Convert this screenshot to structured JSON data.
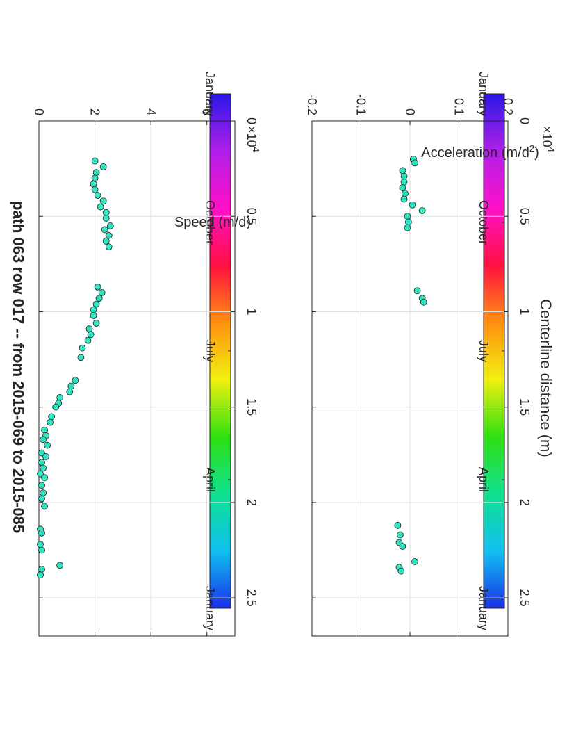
{
  "title": "path 063 row 017  -- from 2015-069 to 2015-085",
  "colors": {
    "marker_fill": "#2fe6c3",
    "marker_edge": "#1f1f1f",
    "grid": "#dedede",
    "axis": "#262626"
  },
  "colorbar": {
    "labels": [
      "January",
      "October",
      "July",
      "April",
      "January"
    ],
    "stops": [
      "#2a18e8",
      "#b020e8",
      "#ff10c8",
      "#ff1040",
      "#ff9010",
      "#f0f010",
      "#30e010",
      "#10e090",
      "#10c0f0",
      "#1a30e8"
    ]
  },
  "chart_data": [
    {
      "type": "scatter",
      "name": "speed",
      "xlabel": "Centerline distance (m)",
      "ylabel": "Speed (m/d)",
      "x_exponent_label": "×10",
      "x_exponent": "4",
      "xlim": [
        0,
        27000
      ],
      "ylim": [
        0,
        7
      ],
      "xticks": [
        0,
        5000,
        10000,
        15000,
        20000,
        25000
      ],
      "xtick_labels": [
        "0",
        "0.5",
        "1",
        "1.5",
        "2",
        "2.5"
      ],
      "yticks": [
        0,
        2,
        4,
        6
      ],
      "ytick_labels": [
        "0",
        "2",
        "4",
        "6"
      ],
      "grid": true,
      "points": [
        {
          "x": 2100,
          "y": 2.0
        },
        {
          "x": 2400,
          "y": 2.3
        },
        {
          "x": 2700,
          "y": 2.05
        },
        {
          "x": 3000,
          "y": 2.0
        },
        {
          "x": 3300,
          "y": 1.95
        },
        {
          "x": 3600,
          "y": 2.0
        },
        {
          "x": 3900,
          "y": 2.1
        },
        {
          "x": 4200,
          "y": 2.3
        },
        {
          "x": 4500,
          "y": 2.2
        },
        {
          "x": 4800,
          "y": 2.4
        },
        {
          "x": 5100,
          "y": 2.4
        },
        {
          "x": 5500,
          "y": 2.55
        },
        {
          "x": 5700,
          "y": 2.35
        },
        {
          "x": 6000,
          "y": 2.5
        },
        {
          "x": 6300,
          "y": 2.4
        },
        {
          "x": 6600,
          "y": 2.5
        },
        {
          "x": 8700,
          "y": 2.1
        },
        {
          "x": 9000,
          "y": 2.25
        },
        {
          "x": 9300,
          "y": 2.15
        },
        {
          "x": 9600,
          "y": 2.05
        },
        {
          "x": 9900,
          "y": 1.95
        },
        {
          "x": 10200,
          "y": 1.95
        },
        {
          "x": 10600,
          "y": 2.05
        },
        {
          "x": 10900,
          "y": 1.8
        },
        {
          "x": 11200,
          "y": 1.85
        },
        {
          "x": 11500,
          "y": 1.75
        },
        {
          "x": 11900,
          "y": 1.55
        },
        {
          "x": 12400,
          "y": 1.5
        },
        {
          "x": 13600,
          "y": 1.3
        },
        {
          "x": 13900,
          "y": 1.15
        },
        {
          "x": 14200,
          "y": 1.1
        },
        {
          "x": 14500,
          "y": 0.75
        },
        {
          "x": 14800,
          "y": 0.7
        },
        {
          "x": 15000,
          "y": 0.6
        },
        {
          "x": 15500,
          "y": 0.45
        },
        {
          "x": 15800,
          "y": 0.4
        },
        {
          "x": 16200,
          "y": 0.2
        },
        {
          "x": 16500,
          "y": 0.25
        },
        {
          "x": 16700,
          "y": 0.15
        },
        {
          "x": 17000,
          "y": 0.3
        },
        {
          "x": 17400,
          "y": 0.1
        },
        {
          "x": 17600,
          "y": 0.25
        },
        {
          "x": 17900,
          "y": 0.1
        },
        {
          "x": 18200,
          "y": 0.15
        },
        {
          "x": 18500,
          "y": 0.05
        },
        {
          "x": 18700,
          "y": 0.2
        },
        {
          "x": 19100,
          "y": 0.1
        },
        {
          "x": 19500,
          "y": 0.15
        },
        {
          "x": 19800,
          "y": 0.1
        },
        {
          "x": 20200,
          "y": 0.2
        },
        {
          "x": 21400,
          "y": 0.05
        },
        {
          "x": 21600,
          "y": 0.1
        },
        {
          "x": 22200,
          "y": 0.05
        },
        {
          "x": 22500,
          "y": 0.1
        },
        {
          "x": 23300,
          "y": 0.75
        },
        {
          "x": 23500,
          "y": 0.1
        },
        {
          "x": 23800,
          "y": 0.05
        }
      ]
    },
    {
      "type": "scatter",
      "name": "acceleration",
      "xlabel": "Centerline distance (m)",
      "ylabel_main": "Acceleration (m/d",
      "ylabel_sup": "2",
      "ylabel_end": ")",
      "x_exponent_label": "×10",
      "x_exponent": "4",
      "xlim": [
        0,
        27000
      ],
      "ylim": [
        -0.2,
        0.2
      ],
      "xticks": [
        0,
        5000,
        10000,
        15000,
        20000,
        25000
      ],
      "xtick_labels": [
        "0",
        "0.5",
        "1",
        "1.5",
        "2",
        "2.5"
      ],
      "yticks": [
        -0.2,
        -0.1,
        0,
        0.1,
        0.2
      ],
      "ytick_labels": [
        "-0.2",
        "-0.1",
        "0",
        "0.1",
        "0.2"
      ],
      "grid": true,
      "points": [
        {
          "x": 2000,
          "y": 0.007
        },
        {
          "x": 2200,
          "y": 0.01
        },
        {
          "x": 2600,
          "y": -0.015
        },
        {
          "x": 2900,
          "y": -0.012
        },
        {
          "x": 3200,
          "y": -0.012
        },
        {
          "x": 3500,
          "y": -0.015
        },
        {
          "x": 3800,
          "y": -0.01
        },
        {
          "x": 4100,
          "y": -0.012
        },
        {
          "x": 4400,
          "y": 0.005
        },
        {
          "x": 4700,
          "y": 0.025
        },
        {
          "x": 5000,
          "y": -0.005
        },
        {
          "x": 5300,
          "y": -0.003
        },
        {
          "x": 5600,
          "y": -0.005
        },
        {
          "x": 8900,
          "y": 0.015
        },
        {
          "x": 9300,
          "y": 0.025
        },
        {
          "x": 9500,
          "y": 0.028
        },
        {
          "x": 21200,
          "y": -0.025
        },
        {
          "x": 21700,
          "y": -0.02
        },
        {
          "x": 22100,
          "y": -0.022
        },
        {
          "x": 22300,
          "y": -0.015
        },
        {
          "x": 23100,
          "y": 0.01
        },
        {
          "x": 23400,
          "y": -0.022
        },
        {
          "x": 23600,
          "y": -0.018
        }
      ]
    }
  ]
}
